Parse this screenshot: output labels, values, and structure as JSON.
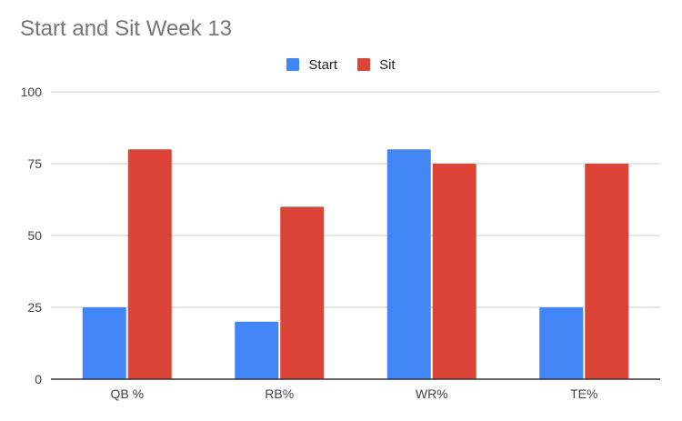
{
  "chart_data": {
    "type": "bar",
    "title": "Start and Sit Week 13",
    "xlabel": "",
    "ylabel": "",
    "categories": [
      "QB %",
      "RB%",
      "WR%",
      "TE%"
    ],
    "series": [
      {
        "name": "Start",
        "color": "#4285f4",
        "values": [
          25,
          20,
          80,
          25
        ]
      },
      {
        "name": "Sit",
        "color": "#db4437",
        "values": [
          80,
          60,
          75,
          75
        ]
      }
    ],
    "ylim": [
      0,
      100
    ],
    "yticks": [
      0,
      25,
      50,
      75,
      100
    ],
    "grid": true,
    "legend": "top-center"
  }
}
